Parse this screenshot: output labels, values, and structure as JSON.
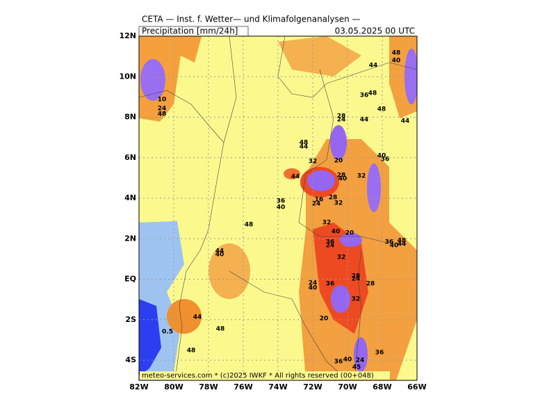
{
  "header": {
    "title": "CETA — Inst. f. Wetter— und Klimafolgenanalysen —",
    "field": "Precipitation [mm/24h]",
    "date": "03.05.2025 00 UTC"
  },
  "lat_ticks": [
    "12N",
    "10N",
    "8N",
    "6N",
    "4N",
    "2N",
    "EQ",
    "2S",
    "4S"
  ],
  "lon_ticks": [
    "82W",
    "80W",
    "78W",
    "76W",
    "74W",
    "72W",
    "70W",
    "68W",
    "66W"
  ],
  "labels": [
    "44",
    "48",
    "40",
    "48",
    "36",
    "48",
    "44",
    "44",
    "28",
    "24",
    "48",
    "44",
    "32",
    "20",
    "40",
    "36",
    "44",
    "32",
    "28",
    "40",
    "28",
    "24",
    "16",
    "32",
    "36",
    "40",
    "48",
    "32",
    "40",
    "20",
    "36",
    "24",
    "32",
    "36",
    "40",
    "48",
    "44",
    "44",
    "40",
    "28",
    "24",
    "28",
    "36",
    "32",
    "24",
    "40",
    "20",
    "44",
    "48",
    "0.5",
    "48",
    "36",
    "40",
    "24",
    "45",
    "36",
    "10",
    "24",
    "48"
  ],
  "footer": "meteo-services.com * (c)2025 IWKF * All rights reserved (00+048)"
}
